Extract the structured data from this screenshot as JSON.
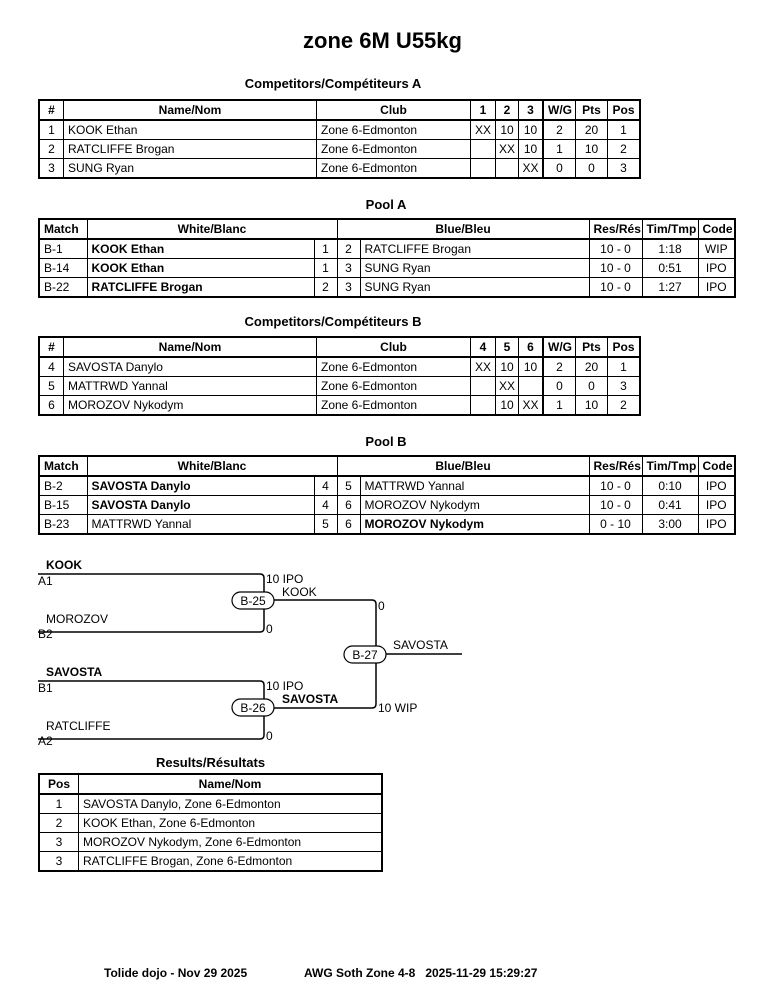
{
  "title": "zone 6M U55kg",
  "competitors_a": {
    "title": "Competitors/Compétiteurs A",
    "headers": [
      "#",
      "Name/Nom",
      "Club",
      "1",
      "2",
      "3",
      "W/G",
      "Pts",
      "Pos"
    ],
    "rows": [
      [
        "1",
        "KOOK Ethan",
        "Zone 6-Edmonton",
        "XX",
        "10",
        "10",
        "2",
        "20",
        "1"
      ],
      [
        "2",
        "RATCLIFFE Brogan",
        "Zone 6-Edmonton",
        "",
        "XX",
        "10",
        "1",
        "10",
        "2"
      ],
      [
        "3",
        "SUNG Ryan",
        "Zone 6-Edmonton",
        "",
        "",
        "XX",
        "0",
        "0",
        "3"
      ]
    ]
  },
  "pool_a": {
    "title": "Pool A",
    "headers": [
      "Match",
      "White/Blanc",
      "Blue/Bleu",
      "Res/Rés",
      "Tim/Tmp",
      "Code"
    ],
    "rows": [
      [
        "B-1",
        "KOOK Ethan",
        "1",
        "2",
        "RATCLIFFE Brogan",
        "10 - 0",
        "1:18",
        "WIP",
        "white"
      ],
      [
        "B-14",
        "KOOK Ethan",
        "1",
        "3",
        "SUNG Ryan",
        "10 - 0",
        "0:51",
        "IPO",
        "white"
      ],
      [
        "B-22",
        "RATCLIFFE Brogan",
        "2",
        "3",
        "SUNG Ryan",
        "10 - 0",
        "1:27",
        "IPO",
        "white"
      ]
    ]
  },
  "competitors_b": {
    "title": "Competitors/Compétiteurs B",
    "headers": [
      "#",
      "Name/Nom",
      "Club",
      "4",
      "5",
      "6",
      "W/G",
      "Pts",
      "Pos"
    ],
    "rows": [
      [
        "4",
        "SAVOSTA Danylo",
        "Zone 6-Edmonton",
        "XX",
        "10",
        "10",
        "2",
        "20",
        "1"
      ],
      [
        "5",
        "MATTRWD Yannal",
        "Zone 6-Edmonton",
        "",
        "XX",
        "",
        "0",
        "0",
        "3"
      ],
      [
        "6",
        "MOROZOV Nykodym",
        "Zone 6-Edmonton",
        "",
        "10",
        "XX",
        "1",
        "10",
        "2"
      ]
    ]
  },
  "pool_b": {
    "title": "Pool B",
    "headers": [
      "Match",
      "White/Blanc",
      "Blue/Bleu",
      "Res/Rés",
      "Tim/Tmp",
      "Code"
    ],
    "rows": [
      [
        "B-2",
        "SAVOSTA Danylo",
        "4",
        "5",
        "MATTRWD Yannal",
        "10 - 0",
        "0:10",
        "IPO",
        "white"
      ],
      [
        "B-15",
        "SAVOSTA Danylo",
        "4",
        "6",
        "MOROZOV Nykodym",
        "10 - 0",
        "0:41",
        "IPO",
        "white"
      ],
      [
        "B-23",
        "MATTRWD Yannal",
        "5",
        "6",
        "MOROZOV Nykodym",
        "0 - 10",
        "3:00",
        "IPO",
        "blue"
      ]
    ]
  },
  "bracket": {
    "semi1": {
      "match": "B-25",
      "top_name": "KOOK",
      "top_seed": "A1",
      "top_score": "10 IPO",
      "bottom_name": "MOROZOV",
      "bottom_seed": "B2",
      "bottom_score": "0",
      "winner": "KOOK"
    },
    "semi2": {
      "match": "B-26",
      "top_name": "SAVOSTA",
      "top_seed": "B1",
      "top_score": "10 IPO",
      "bottom_name": "RATCLIFFE",
      "bottom_seed": "A2",
      "bottom_score": "0",
      "winner": "SAVOSTA"
    },
    "final": {
      "match": "B-27",
      "top_score": "0",
      "bottom_score": "10 WIP",
      "winner": "SAVOSTA"
    }
  },
  "results": {
    "title": "Results/Résultats",
    "headers": [
      "Pos",
      "Name/Nom"
    ],
    "rows": [
      [
        "1",
        "SAVOSTA Danylo, Zone 6-Edmonton"
      ],
      [
        "2",
        "KOOK Ethan, Zone 6-Edmonton"
      ],
      [
        "3",
        "MOROZOV Nykodym, Zone 6-Edmonton"
      ],
      [
        "3",
        "RATCLIFFE Brogan, Zone 6-Edmonton"
      ]
    ]
  },
  "footer": {
    "left": "Tolide dojo - Nov 29 2025",
    "right": "AWG Soth Zone 4-8   2025-11-29 15:29:27"
  }
}
